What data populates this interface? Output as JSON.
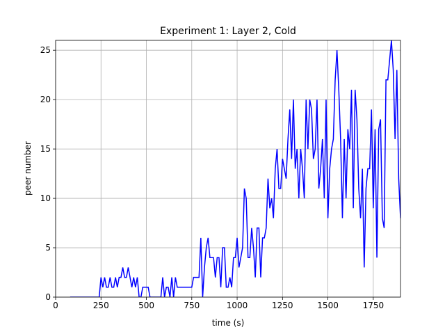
{
  "chart_data": {
    "type": "line",
    "title": "Experiment 1: Layer 2, Cold",
    "x_label": "time (s)",
    "y_label": "peer number",
    "color": "#0000ff",
    "grid": true,
    "x": [
      80,
      240,
      250,
      260,
      270,
      280,
      290,
      300,
      310,
      320,
      330,
      340,
      350,
      360,
      370,
      380,
      390,
      400,
      410,
      420,
      430,
      440,
      450,
      460,
      470,
      480,
      490,
      500,
      510,
      520,
      530,
      580,
      590,
      600,
      610,
      620,
      630,
      640,
      650,
      660,
      670,
      700,
      750,
      760,
      790,
      800,
      810,
      820,
      830,
      840,
      850,
      870,
      880,
      890,
      900,
      910,
      920,
      930,
      940,
      950,
      960,
      970,
      980,
      990,
      1000,
      1010,
      1020,
      1030,
      1040,
      1050,
      1060,
      1070,
      1080,
      1090,
      1100,
      1110,
      1120,
      1130,
      1140,
      1150,
      1160,
      1170,
      1180,
      1190,
      1200,
      1210,
      1220,
      1230,
      1240,
      1250,
      1260,
      1270,
      1280,
      1290,
      1300,
      1310,
      1320,
      1330,
      1340,
      1350,
      1360,
      1370,
      1380,
      1390,
      1400,
      1410,
      1420,
      1430,
      1440,
      1450,
      1460,
      1470,
      1480,
      1490,
      1500,
      1510,
      1520,
      1530,
      1540,
      1550,
      1560,
      1570,
      1580,
      1590,
      1600,
      1610,
      1620,
      1630,
      1640,
      1650,
      1660,
      1670,
      1680,
      1690,
      1700,
      1710,
      1720,
      1730,
      1740,
      1750,
      1760,
      1770,
      1780,
      1790,
      1800,
      1810,
      1820,
      1830,
      1840,
      1850,
      1860,
      1870,
      1880,
      1890,
      1900
    ],
    "values": [
      0,
      0,
      2,
      1,
      2,
      1,
      1,
      2,
      1,
      1,
      2,
      1,
      2,
      2,
      3,
      2,
      2,
      3,
      2,
      1,
      2,
      1,
      2,
      0,
      0,
      1,
      1,
      1,
      1,
      0,
      0,
      0,
      2,
      0,
      1,
      1,
      0,
      2,
      0,
      2,
      1,
      1,
      1,
      2,
      2,
      6,
      0,
      3,
      5,
      6,
      4,
      4,
      2,
      4,
      4,
      1,
      5,
      5,
      1,
      1,
      2,
      1,
      4,
      4,
      6,
      3,
      4,
      5,
      11,
      10,
      4,
      4,
      7,
      5,
      2,
      7,
      7,
      2,
      6,
      6,
      7,
      12,
      9,
      10,
      8,
      13,
      15,
      11,
      11,
      14,
      13,
      12,
      16,
      19,
      14,
      20,
      13,
      15,
      10,
      15,
      13,
      10,
      20,
      15,
      20,
      19,
      14,
      15,
      20,
      11,
      13,
      16,
      10,
      20,
      8,
      13,
      15,
      16,
      22,
      25,
      21,
      16,
      8,
      16,
      10,
      17,
      15,
      21,
      9,
      21,
      18,
      11,
      8,
      13,
      3,
      11,
      13,
      13,
      19,
      9,
      17,
      4,
      17,
      18,
      8,
      7,
      22,
      22,
      24,
      26,
      23,
      16,
      23,
      12,
      8
    ],
    "xlim": [
      0,
      1900
    ],
    "xticks": [
      0,
      250,
      500,
      750,
      1000,
      1250,
      1500,
      1750
    ],
    "ylim": [
      0,
      26
    ],
    "yticks": [
      0,
      5,
      10,
      15,
      20,
      25
    ]
  }
}
